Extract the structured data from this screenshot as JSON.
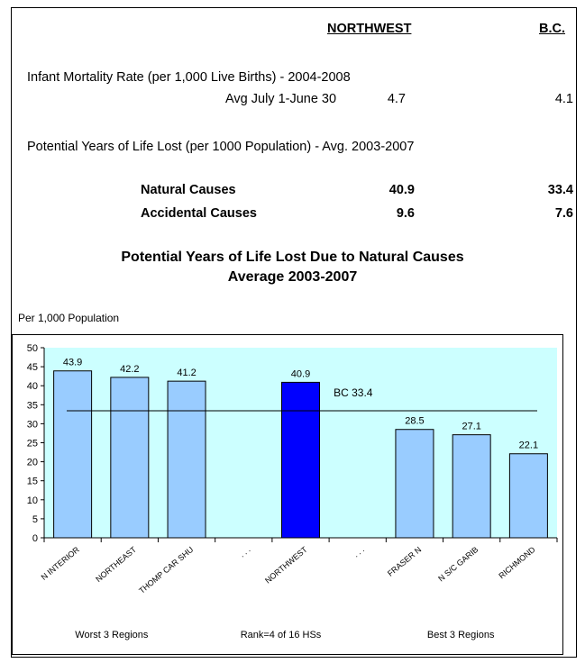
{
  "table": {
    "col_northwest": "NORTHWEST",
    "col_bc": "B.C.",
    "imr_label": "Infant Mortality Rate (per 1,000 Live Births) - 2004-2008",
    "imr_sub_label": "Avg July 1-June 30",
    "imr_northwest": "4.7",
    "imr_bc": "4.1",
    "pyll_label": "Potential Years of Life Lost (per 1000 Population) - Avg. 2003-2007",
    "rows": [
      {
        "label": "Natural Causes",
        "northwest": "40.9",
        "bc": "33.4"
      },
      {
        "label": "Accidental Causes",
        "northwest": "9.6",
        "bc": "7.6"
      }
    ]
  },
  "chart_title_line1": "Potential Years of Life Lost Due to Natural Causes",
  "chart_title_line2": "Average 2003-2007",
  "chart_data": {
    "type": "bar",
    "title": "Potential Years of Life Lost Due to Natural Causes Average 2003-2007",
    "ylabel": "Per 1,000 Population",
    "ylim": [
      0,
      50
    ],
    "yticks": [
      0,
      5,
      10,
      15,
      20,
      25,
      30,
      35,
      40,
      45,
      50
    ],
    "categories": [
      "N INTERIOR",
      "NORTHEAST",
      "THOMP CAR SHU",
      ". . .",
      "NORTHWEST",
      ". . .",
      "FRASER N",
      "N S/C GARIB",
      "RICHMOND"
    ],
    "values": [
      43.9,
      42.2,
      41.2,
      null,
      40.9,
      null,
      28.5,
      27.1,
      22.1
    ],
    "value_labels": [
      "43.9",
      "42.2",
      "41.2",
      "",
      "40.9",
      "",
      "28.5",
      "27.1",
      "22.1"
    ],
    "highlight": "NORTHWEST",
    "reference_line": {
      "label": "BC 33.4",
      "value": 33.4
    },
    "group_labels": [
      "Worst 3 Regions",
      "Rank=4 of 16 HSs",
      "Best 3 Regions"
    ],
    "colors": {
      "bar": "#99ccff",
      "highlight": "#0000ff",
      "plot_bg": "#ccffff"
    }
  }
}
